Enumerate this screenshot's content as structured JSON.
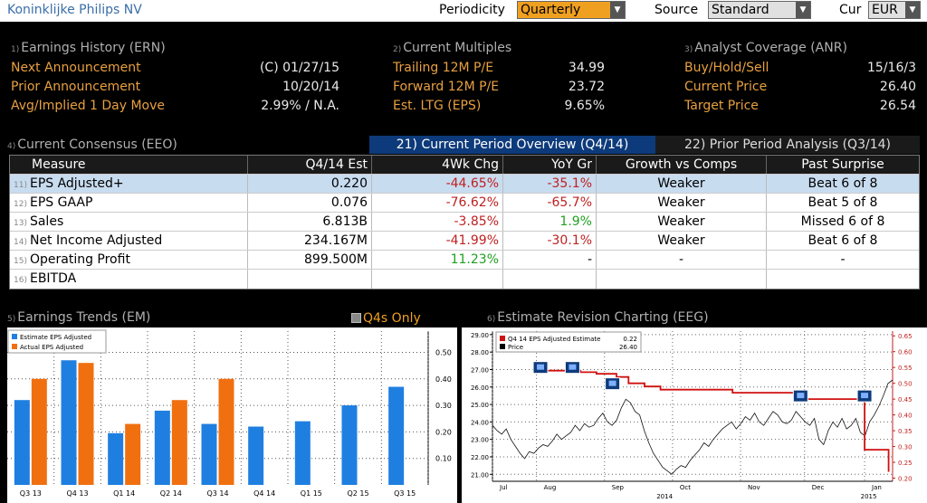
{
  "header": {
    "company": "Koninklijke Philips NV",
    "periodicity_label": "Periodicity",
    "periodicity_value": "Quarterly",
    "source_label": "Source",
    "source_value": "Standard",
    "cur_label": "Cur",
    "cur_value": "EUR"
  },
  "earnings_history": {
    "num": "1)",
    "title": "Earnings History (ERN)",
    "rows": [
      {
        "label": "Next Announcement",
        "value": "(C)  01/27/15"
      },
      {
        "label": "Prior Announcement",
        "value": "10/20/14"
      },
      {
        "label": "Avg/Implied 1 Day Move",
        "value": "2.99% / N.A."
      }
    ]
  },
  "current_multiples": {
    "num": "2)",
    "title": "Current Multiples",
    "rows": [
      {
        "label": "Trailing 12M P/E",
        "value": "34.99"
      },
      {
        "label": "Forward 12M P/E",
        "value": "23.72"
      },
      {
        "label": "Est. LTG (EPS)",
        "value": "9.65%"
      }
    ]
  },
  "analyst_coverage": {
    "num": "3)",
    "title": "Analyst Coverage (ANR)",
    "rows": [
      {
        "label": "Buy/Hold/Sell",
        "value": "15/16/3"
      },
      {
        "label": "Current Price",
        "value": "26.40"
      },
      {
        "label": "Target Price",
        "value": "26.54"
      }
    ]
  },
  "consensus": {
    "num": "4)",
    "title": "Current Consensus (EEO)",
    "tab_current": "21) Current Period Overview (Q4/14)",
    "tab_prior": "22) Prior Period Analysis (Q3/14)",
    "columns": [
      "Measure",
      "Q4/14 Est",
      "4Wk Chg",
      "YoY Gr",
      "Growth vs Comps",
      "Past Surprise"
    ],
    "rows": [
      {
        "num": "11)",
        "measure": "EPS Adjusted+",
        "est": "0.220",
        "chg": "-44.65%",
        "yoy": "-35.1%",
        "comps": "Weaker",
        "surprise": "Beat 6 of 8"
      },
      {
        "num": "12)",
        "measure": "EPS GAAP",
        "est": "0.076",
        "chg": "-76.62%",
        "yoy": "-65.7%",
        "comps": "Weaker",
        "surprise": "Beat 5 of 8"
      },
      {
        "num": "13)",
        "measure": "Sales",
        "est": "6.813B",
        "chg": "-3.85%",
        "yoy": "1.9%",
        "comps": "Weaker",
        "surprise": "Missed 6 of 8"
      },
      {
        "num": "14)",
        "measure": "Net Income Adjusted",
        "est": "234.167M",
        "chg": "-41.99%",
        "yoy": "-30.1%",
        "comps": "Weaker",
        "surprise": "Beat 6 of 8"
      },
      {
        "num": "15)",
        "measure": "Operating Profit",
        "est": "899.500M",
        "chg": "11.23%",
        "yoy": "-",
        "comps": "-",
        "surprise": "-"
      },
      {
        "num": "16)",
        "measure": "EBITDA",
        "est": "",
        "chg": "",
        "yoy": "",
        "comps": "",
        "surprise": ""
      }
    ]
  },
  "trends": {
    "num": "5)",
    "title": "Earnings Trends (EM)",
    "toggle_label": "Q4s Only"
  },
  "revision": {
    "num": "6)",
    "title": "Estimate Revision Charting (EEG)"
  },
  "chart_data": [
    {
      "type": "bar",
      "categories": [
        "Q3 13",
        "Q4 13",
        "Q1 14",
        "Q2 14",
        "Q3 14",
        "Q4 14",
        "Q1 15",
        "Q2 15",
        "Q3 15"
      ],
      "series": [
        {
          "name": "Estimate EPS Adjusted",
          "color": "#1f7fe0",
          "values": [
            0.32,
            0.47,
            0.195,
            0.28,
            0.23,
            0.22,
            0.24,
            0.3,
            0.37
          ]
        },
        {
          "name": "Actual EPS Adjusted",
          "color": "#f07010",
          "values": [
            0.4,
            0.46,
            0.23,
            0.32,
            0.4,
            null,
            null,
            null,
            null
          ]
        }
      ],
      "yticks": [
        "0.10",
        "0.20",
        "0.30",
        "0.40",
        "0.50"
      ],
      "ylim": [
        0,
        0.58
      ],
      "legend": "top-left"
    },
    {
      "type": "line",
      "legend_rows": [
        {
          "name": "Q4 14 EPS Adjusted Estimate",
          "value": "0.22",
          "color": "#d01010"
        },
        {
          "name": "Price",
          "value": "26.40",
          "color": "#000000"
        }
      ],
      "x_labels": [
        "Jul",
        "Aug",
        "Sep",
        "Oct",
        "Nov",
        "Dec",
        "Jan"
      ],
      "year_labels": [
        "2014",
        "2015"
      ],
      "y_left_ticks": [
        "21.00",
        "22.00",
        "23.00",
        "24.00",
        "25.00",
        "26.00",
        "27.00",
        "28.00",
        "29.00"
      ],
      "y_right_ticks": [
        "0.20",
        "0.25",
        "0.30",
        "0.35",
        "0.40",
        "0.45",
        "0.50",
        "0.55",
        "0.60",
        "0.65"
      ],
      "ylim_left": [
        20.6,
        29.2
      ],
      "ylim_right": [
        0.19,
        0.665
      ],
      "price": [
        23.8,
        23.5,
        23.3,
        23.6,
        23.0,
        22.6,
        22.2,
        21.9,
        22.3,
        22.2,
        22.5,
        22.7,
        22.6,
        22.9,
        23.3,
        23.0,
        23.2,
        23.4,
        23.8,
        23.5,
        23.9,
        23.7,
        23.8,
        24.2,
        24.5,
        24.0,
        23.8,
        24.1,
        24.8,
        25.3,
        25.1,
        24.6,
        24.4,
        23.5,
        22.8,
        22.2,
        21.8,
        21.4,
        21.2,
        21.0,
        21.3,
        21.5,
        21.4,
        21.8,
        22.1,
        22.4,
        22.8,
        22.6,
        23.0,
        23.3,
        23.6,
        23.8,
        24.0,
        23.6,
        23.9,
        24.3,
        24.1,
        24.5,
        24.0,
        23.8,
        24.2,
        24.6,
        24.4,
        24.0,
        23.9,
        24.1,
        24.6,
        24.3,
        24.0,
        23.8,
        24.2,
        23.0,
        22.7,
        23.5,
        24.0,
        23.7,
        24.2,
        23.6,
        23.8,
        24.2,
        23.4,
        23.2,
        24.0,
        24.4,
        24.9,
        25.5,
        26.2,
        26.4
      ],
      "estimate": [
        {
          "t": 0.11,
          "v": 0.54
        },
        {
          "t": 0.22,
          "v": 0.54
        },
        {
          "t": 0.22,
          "v": 0.535
        },
        {
          "t": 0.26,
          "v": 0.535
        },
        {
          "t": 0.26,
          "v": 0.53
        },
        {
          "t": 0.31,
          "v": 0.53
        },
        {
          "t": 0.31,
          "v": 0.52
        },
        {
          "t": 0.34,
          "v": 0.52
        },
        {
          "t": 0.34,
          "v": 0.5
        },
        {
          "t": 0.38,
          "v": 0.5
        },
        {
          "t": 0.38,
          "v": 0.49
        },
        {
          "t": 0.42,
          "v": 0.49
        },
        {
          "t": 0.42,
          "v": 0.48
        },
        {
          "t": 0.6,
          "v": 0.48
        },
        {
          "t": 0.6,
          "v": 0.47
        },
        {
          "t": 0.76,
          "v": 0.47
        },
        {
          "t": 0.76,
          "v": 0.45
        },
        {
          "t": 0.93,
          "v": 0.45
        },
        {
          "t": 0.93,
          "v": 0.29
        },
        {
          "t": 0.99,
          "v": 0.29
        },
        {
          "t": 0.99,
          "v": 0.22
        }
      ],
      "markers": [
        0.12,
        0.2,
        0.3,
        0.77,
        0.93
      ]
    }
  ]
}
